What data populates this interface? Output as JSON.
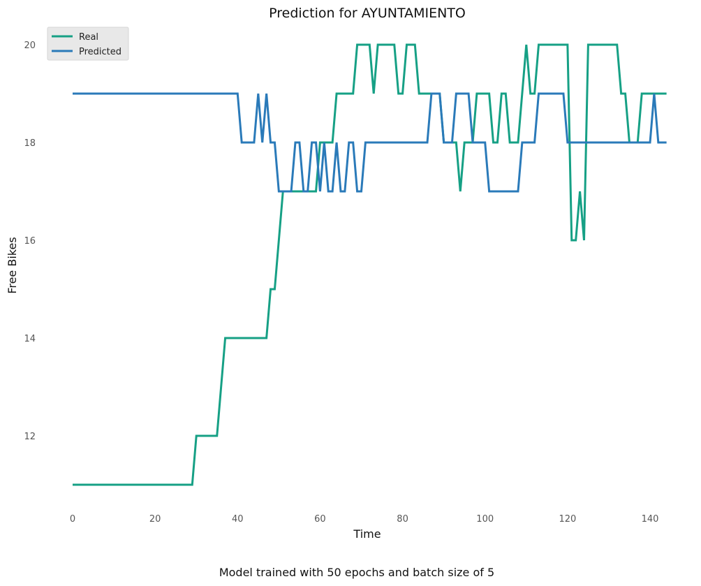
{
  "chart_data": {
    "type": "line",
    "title": "Prediction for AYUNTAMIENTO",
    "xlabel": "Time",
    "ylabel": "Free Bikes",
    "caption": "Model trained with 50 epochs and batch size of 5",
    "xlim": [
      -2,
      144
    ],
    "ylim": [
      10.5,
      20.4
    ],
    "xticks": [
      0,
      20,
      40,
      60,
      80,
      100,
      120,
      140
    ],
    "yticks": [
      12,
      14,
      16,
      18,
      20
    ],
    "grid": false,
    "legend": "upper-left",
    "series": [
      {
        "name": "Real",
        "color": "#16a085",
        "values": [
          11,
          11,
          11,
          11,
          11,
          11,
          11,
          11,
          11,
          11,
          11,
          11,
          11,
          11,
          11,
          11,
          11,
          11,
          11,
          11,
          11,
          11,
          11,
          11,
          11,
          11,
          11,
          11,
          11,
          11,
          12,
          12,
          12,
          12,
          12,
          12,
          13,
          14,
          14,
          14,
          14,
          14,
          14,
          14,
          14,
          14,
          14,
          14,
          15,
          15,
          16,
          17,
          17,
          17,
          17,
          17,
          17,
          17,
          17,
          17,
          18,
          18,
          18,
          18,
          19,
          19,
          19,
          19,
          19,
          20,
          20,
          20,
          20,
          19,
          20,
          20,
          20,
          20,
          20,
          19,
          19,
          20,
          20,
          20,
          19,
          19,
          19,
          19,
          19,
          19,
          18,
          18,
          18,
          18,
          17,
          18,
          18,
          18,
          19,
          19,
          19,
          19,
          18,
          18,
          19,
          19,
          18,
          18,
          18,
          19,
          20,
          19,
          19,
          20,
          20,
          20,
          20,
          20,
          20,
          20,
          20,
          16,
          16,
          17,
          16,
          20,
          20,
          20,
          20,
          20,
          20,
          20,
          20,
          19,
          19,
          18,
          18,
          18,
          19,
          19,
          19,
          19,
          19,
          19,
          19
        ],
        "values_note": ""
      },
      {
        "name": "Predicted",
        "color": "#2a7ab9",
        "values": [
          19,
          19,
          19,
          19,
          19,
          19,
          19,
          19,
          19,
          19,
          19,
          19,
          19,
          19,
          19,
          19,
          19,
          19,
          19,
          19,
          19,
          19,
          19,
          19,
          19,
          19,
          19,
          19,
          19,
          19,
          19,
          19,
          19,
          19,
          19,
          19,
          19,
          19,
          19,
          19,
          19,
          18,
          18,
          18,
          18,
          19,
          18,
          19,
          18,
          18,
          17,
          17,
          17,
          17,
          18,
          18,
          17,
          17,
          18,
          18,
          17,
          18,
          17,
          17,
          18,
          17,
          17,
          18,
          18,
          17,
          17,
          18,
          18,
          18,
          18,
          18,
          18,
          18,
          18,
          18,
          18,
          18,
          18,
          18,
          18,
          18,
          18,
          19,
          19,
          19,
          18,
          18,
          18,
          19,
          19,
          19,
          19,
          18,
          18,
          18,
          18,
          17,
          17,
          17,
          17,
          17,
          17,
          17,
          17,
          18,
          18,
          18,
          18,
          19,
          19,
          19,
          19,
          19,
          19,
          19,
          18,
          18,
          18,
          18,
          18,
          18,
          18,
          18,
          18,
          18,
          18,
          18,
          18,
          18,
          18,
          18,
          18,
          18,
          18,
          18,
          18,
          19,
          18,
          18,
          18
        ]
      }
    ]
  }
}
